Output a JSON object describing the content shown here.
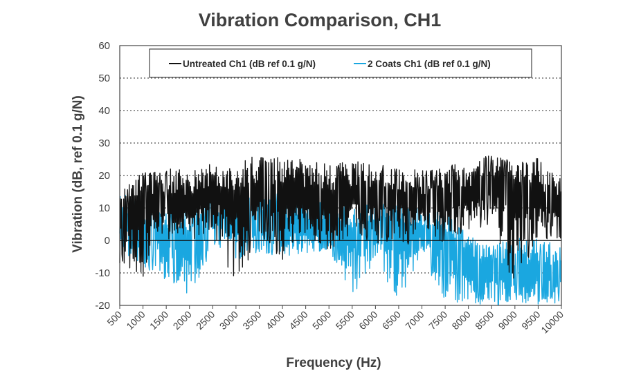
{
  "chart_data": {
    "type": "line",
    "title": "Vibration Comparison, CH1",
    "xlabel": "Frequency (Hz)",
    "ylabel": "Vibration  (dB, ref 0.1 g/N)",
    "xlim": [
      500,
      10000
    ],
    "ylim": [
      -20,
      60
    ],
    "x_ticks": [
      500,
      1000,
      1500,
      2000,
      2500,
      3000,
      3500,
      4000,
      4500,
      5000,
      5500,
      6000,
      6500,
      7000,
      7500,
      8000,
      8500,
      9000,
      9500,
      10000
    ],
    "y_ticks": [
      -20,
      -10,
      0,
      10,
      20,
      30,
      40,
      50,
      60
    ],
    "grid": "horizontal dotted",
    "legend_position": "top-center",
    "series": [
      {
        "name": "Untreated Ch1 (dB ref 0.1 g/N)",
        "color": "#111111",
        "x": [
          500,
          1000,
          1500,
          2000,
          2500,
          3000,
          3500,
          4000,
          4500,
          5000,
          5500,
          6000,
          6500,
          7000,
          7500,
          8000,
          8500,
          9000,
          9500,
          10000
        ],
        "values": [
          8,
          12,
          12,
          11,
          15,
          13,
          15,
          14,
          14,
          13,
          14,
          13,
          13,
          12,
          12,
          14,
          18,
          14,
          13,
          11
        ],
        "range": [
          {
            "x": 500,
            "min": -7,
            "max": 15
          },
          {
            "x": 1000,
            "min": -14,
            "max": 22
          },
          {
            "x": 1500,
            "min": 0,
            "max": 22
          },
          {
            "x": 2000,
            "min": -2,
            "max": 23
          },
          {
            "x": 2500,
            "min": 2,
            "max": 24
          },
          {
            "x": 3000,
            "min": -15,
            "max": 24
          },
          {
            "x": 3500,
            "min": 2,
            "max": 27
          },
          {
            "x": 4000,
            "min": -7,
            "max": 26
          },
          {
            "x": 4500,
            "min": 2,
            "max": 25
          },
          {
            "x": 5000,
            "min": -4,
            "max": 24
          },
          {
            "x": 5500,
            "min": 2,
            "max": 25
          },
          {
            "x": 6000,
            "min": -1,
            "max": 24
          },
          {
            "x": 6500,
            "min": 0,
            "max": 23
          },
          {
            "x": 7000,
            "min": -3,
            "max": 22
          },
          {
            "x": 7500,
            "min": -1,
            "max": 23
          },
          {
            "x": 8000,
            "min": 2,
            "max": 24
          },
          {
            "x": 8500,
            "min": 5,
            "max": 27
          },
          {
            "x": 9000,
            "min": -15,
            "max": 24
          },
          {
            "x": 9500,
            "min": 1,
            "max": 26
          },
          {
            "x": 10000,
            "min": -2,
            "max": 20
          }
        ]
      },
      {
        "name": "2 Coats Ch1 (dB ref 0.1 g/N)",
        "color": "#1aa7e0",
        "x": [
          500,
          1000,
          1500,
          2000,
          2500,
          3000,
          3500,
          4000,
          4500,
          5000,
          5500,
          6000,
          6500,
          7000,
          7500,
          8000,
          8500,
          9000,
          9500,
          10000
        ],
        "values": [
          6,
          5,
          2,
          0,
          8,
          5,
          6,
          5,
          4,
          5,
          2,
          4,
          3,
          3,
          2,
          -8,
          -9,
          -10,
          -10,
          -10
        ],
        "range": [
          {
            "x": 500,
            "min": -4,
            "max": 16
          },
          {
            "x": 1000,
            "min": -8,
            "max": 12
          },
          {
            "x": 1500,
            "min": -13,
            "max": 9
          },
          {
            "x": 2000,
            "min": -19,
            "max": 10
          },
          {
            "x": 2500,
            "min": -2,
            "max": 14
          },
          {
            "x": 3000,
            "min": -6,
            "max": 12
          },
          {
            "x": 3500,
            "min": -4,
            "max": 14
          },
          {
            "x": 4000,
            "min": -6,
            "max": 16
          },
          {
            "x": 4500,
            "min": -5,
            "max": 13
          },
          {
            "x": 5000,
            "min": -3,
            "max": 12
          },
          {
            "x": 5500,
            "min": -18,
            "max": 11
          },
          {
            "x": 6000,
            "min": -7,
            "max": 12
          },
          {
            "x": 6500,
            "min": -19,
            "max": 11
          },
          {
            "x": 7000,
            "min": -5,
            "max": 10
          },
          {
            "x": 7500,
            "min": -19,
            "max": 9
          },
          {
            "x": 8000,
            "min": -20,
            "max": 2
          },
          {
            "x": 8500,
            "min": -20,
            "max": 0
          },
          {
            "x": 9000,
            "min": -20,
            "max": 1
          },
          {
            "x": 9500,
            "min": -20,
            "max": 1
          },
          {
            "x": 10000,
            "min": -19,
            "max": -2
          }
        ]
      }
    ]
  }
}
